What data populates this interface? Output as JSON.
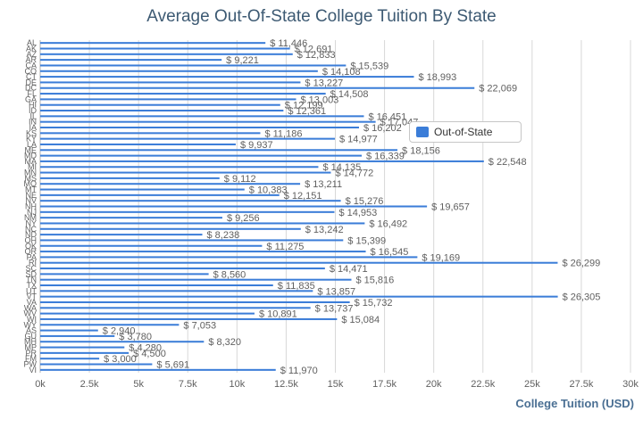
{
  "chart_data": {
    "type": "bar",
    "orientation": "horizontal",
    "title": "Average Out-Of-State College Tuition By State",
    "xlabel": "College Tuition (USD)",
    "ylabel": "",
    "xlim": [
      0,
      30000
    ],
    "x_ticks": [
      "0k",
      "2.5k",
      "5k",
      "7.5k",
      "10k",
      "12.5k",
      "15k",
      "17.5k",
      "20k",
      "22.5k",
      "25k",
      "27.5k",
      "30k"
    ],
    "grid": true,
    "legend_position": "right",
    "value_prefix": "$ ",
    "categories": [
      "AL",
      "AK",
      "AZ",
      "AR",
      "CA",
      "CO",
      "CT",
      "DE",
      "DC",
      "FL",
      "GA",
      "HI",
      "ID",
      "IL",
      "IN",
      "IA",
      "KS",
      "KY",
      "LA",
      "ME",
      "MD",
      "MA",
      "MI",
      "MN",
      "MS",
      "MO",
      "MT",
      "NE",
      "NV",
      "NH",
      "NJ",
      "NM",
      "NY",
      "NC",
      "ND",
      "OH",
      "OK",
      "OR",
      "PA",
      "RI",
      "SC",
      "SD",
      "TN",
      "TX",
      "UT",
      "VT",
      "VA",
      "WA",
      "WV",
      "WI",
      "WY",
      "AS",
      "GU",
      "MH",
      "MP",
      "PR",
      "FM",
      "PW",
      "VI"
    ],
    "value_labels": [
      "11,446",
      "12,691",
      "12,833",
      "9,221",
      "15,539",
      "14,108",
      "18,993",
      "13,227",
      "22,069",
      "14,508",
      "13,003",
      "12,199",
      "12,361",
      "16,451",
      "17,047",
      "16,202",
      "11,186",
      "14,977",
      "9,937",
      "18,156",
      "16,339",
      "22,548",
      "14,135",
      "14,772",
      "9,112",
      "13,211",
      "10,383",
      "12,151",
      "15,276",
      "19,657",
      "14,953",
      "9,256",
      "16,492",
      "13,242",
      "8,238",
      "15,399",
      "11,275",
      "16,545",
      "19,169",
      "26,299",
      "14,471",
      "8,560",
      "15,816",
      "11,835",
      "13,857",
      "26,305",
      "15,732",
      "13,737",
      "10,891",
      "15,084",
      "7,053",
      "2,940",
      "3,780",
      "8,320",
      "4,280",
      "4,500",
      "3,000",
      "5,691",
      "11,970"
    ],
    "series": [
      {
        "name": "Out-of-State",
        "color": "#3b7dd8",
        "values": [
          11446,
          12691,
          12833,
          9221,
          15539,
          14108,
          18993,
          13227,
          22069,
          14508,
          13003,
          12199,
          12361,
          16451,
          17047,
          16202,
          11186,
          14977,
          9937,
          18156,
          16339,
          22548,
          14135,
          14772,
          9112,
          13211,
          10383,
          12151,
          15276,
          19657,
          14953,
          9256,
          16492,
          13242,
          8238,
          15399,
          11275,
          16545,
          19169,
          26299,
          14471,
          8560,
          15816,
          11835,
          13857,
          26305,
          15732,
          13737,
          10891,
          15084,
          7053,
          2940,
          3780,
          8320,
          4280,
          4500,
          3000,
          5691,
          11970
        ]
      }
    ]
  },
  "colors": {
    "title": "#3d5a73",
    "axis_title": "#4a6f93",
    "bar": "#3b7dd8",
    "grid": "#d8d8d8",
    "label": "#606060"
  }
}
